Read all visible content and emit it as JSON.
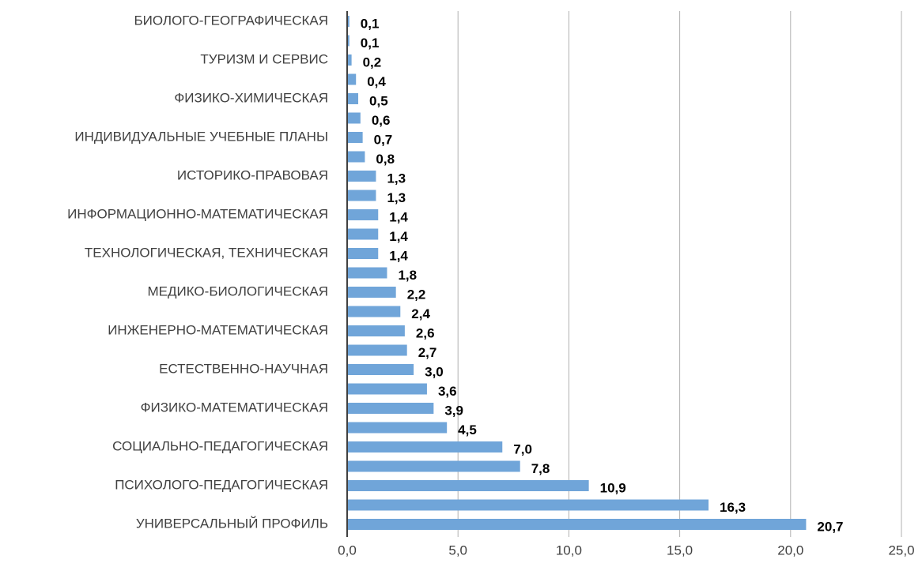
{
  "chart_data": {
    "type": "barh",
    "categories": [
      "БИОЛОГО-ГЕОГРАФИЧЕСКАЯ",
      null,
      "ТУРИЗМ И СЕРВИС",
      null,
      "ФИЗИКО-ХИМИЧЕСКАЯ",
      null,
      "ИНДИВИДУАЛЬНЫЕ УЧЕБНЫЕ ПЛАНЫ",
      null,
      "ИСТОРИКО-ПРАВОВАЯ",
      null,
      "ИНФОРМАЦИОННО-МАТЕМАТИЧЕСКАЯ",
      null,
      "ТЕХНОЛОГИЧЕСКАЯ, ТЕХНИЧЕСКАЯ",
      null,
      "МЕДИКО-БИОЛОГИЧЕСКАЯ",
      null,
      "ИНЖЕНЕРНО-МАТЕМАТИЧЕСКАЯ",
      null,
      "ЕСТЕСТВЕННО-НАУЧНАЯ",
      null,
      "ФИЗИКО-МАТЕМАТИЧЕСКАЯ",
      null,
      "СОЦИАЛЬНО-ПЕДАГОГИЧЕСКАЯ",
      null,
      "ПСИХОЛОГО-ПЕДАГОГИЧЕСКАЯ",
      null,
      "УНИВЕРСАЛЬНЫЙ ПРОФИЛЬ"
    ],
    "values": [
      0.1,
      0.1,
      0.2,
      0.4,
      0.5,
      0.6,
      0.7,
      0.8,
      1.3,
      1.3,
      1.4,
      1.4,
      1.4,
      1.8,
      2.2,
      2.4,
      2.6,
      2.7,
      3.0,
      3.6,
      3.9,
      4.5,
      7.0,
      7.8,
      10.9,
      16.3,
      20.7
    ],
    "value_labels": [
      "0,1",
      "0,1",
      "0,2",
      "0,4",
      "0,5",
      "0,6",
      "0,7",
      "0,8",
      "1,3",
      "1,3",
      "1,4",
      "1,4",
      "1,4",
      "1,8",
      "2,2",
      "2,4",
      "2,6",
      "2,7",
      "3,0",
      "3,6",
      "3,9",
      "4,5",
      "7,0",
      "7,8",
      "10,9",
      "16,3",
      "20,7"
    ],
    "color": "#70a5d9",
    "xlim": [
      0,
      25
    ],
    "xticks": [
      {
        "value": 0,
        "label": "0,0"
      },
      {
        "value": 5,
        "label": "5,0"
      },
      {
        "value": 10,
        "label": "10,0"
      },
      {
        "value": 15,
        "label": "15,0"
      },
      {
        "value": 20,
        "label": "20,0"
      },
      {
        "value": 25,
        "label": "25,0"
      }
    ],
    "grid": true
  }
}
